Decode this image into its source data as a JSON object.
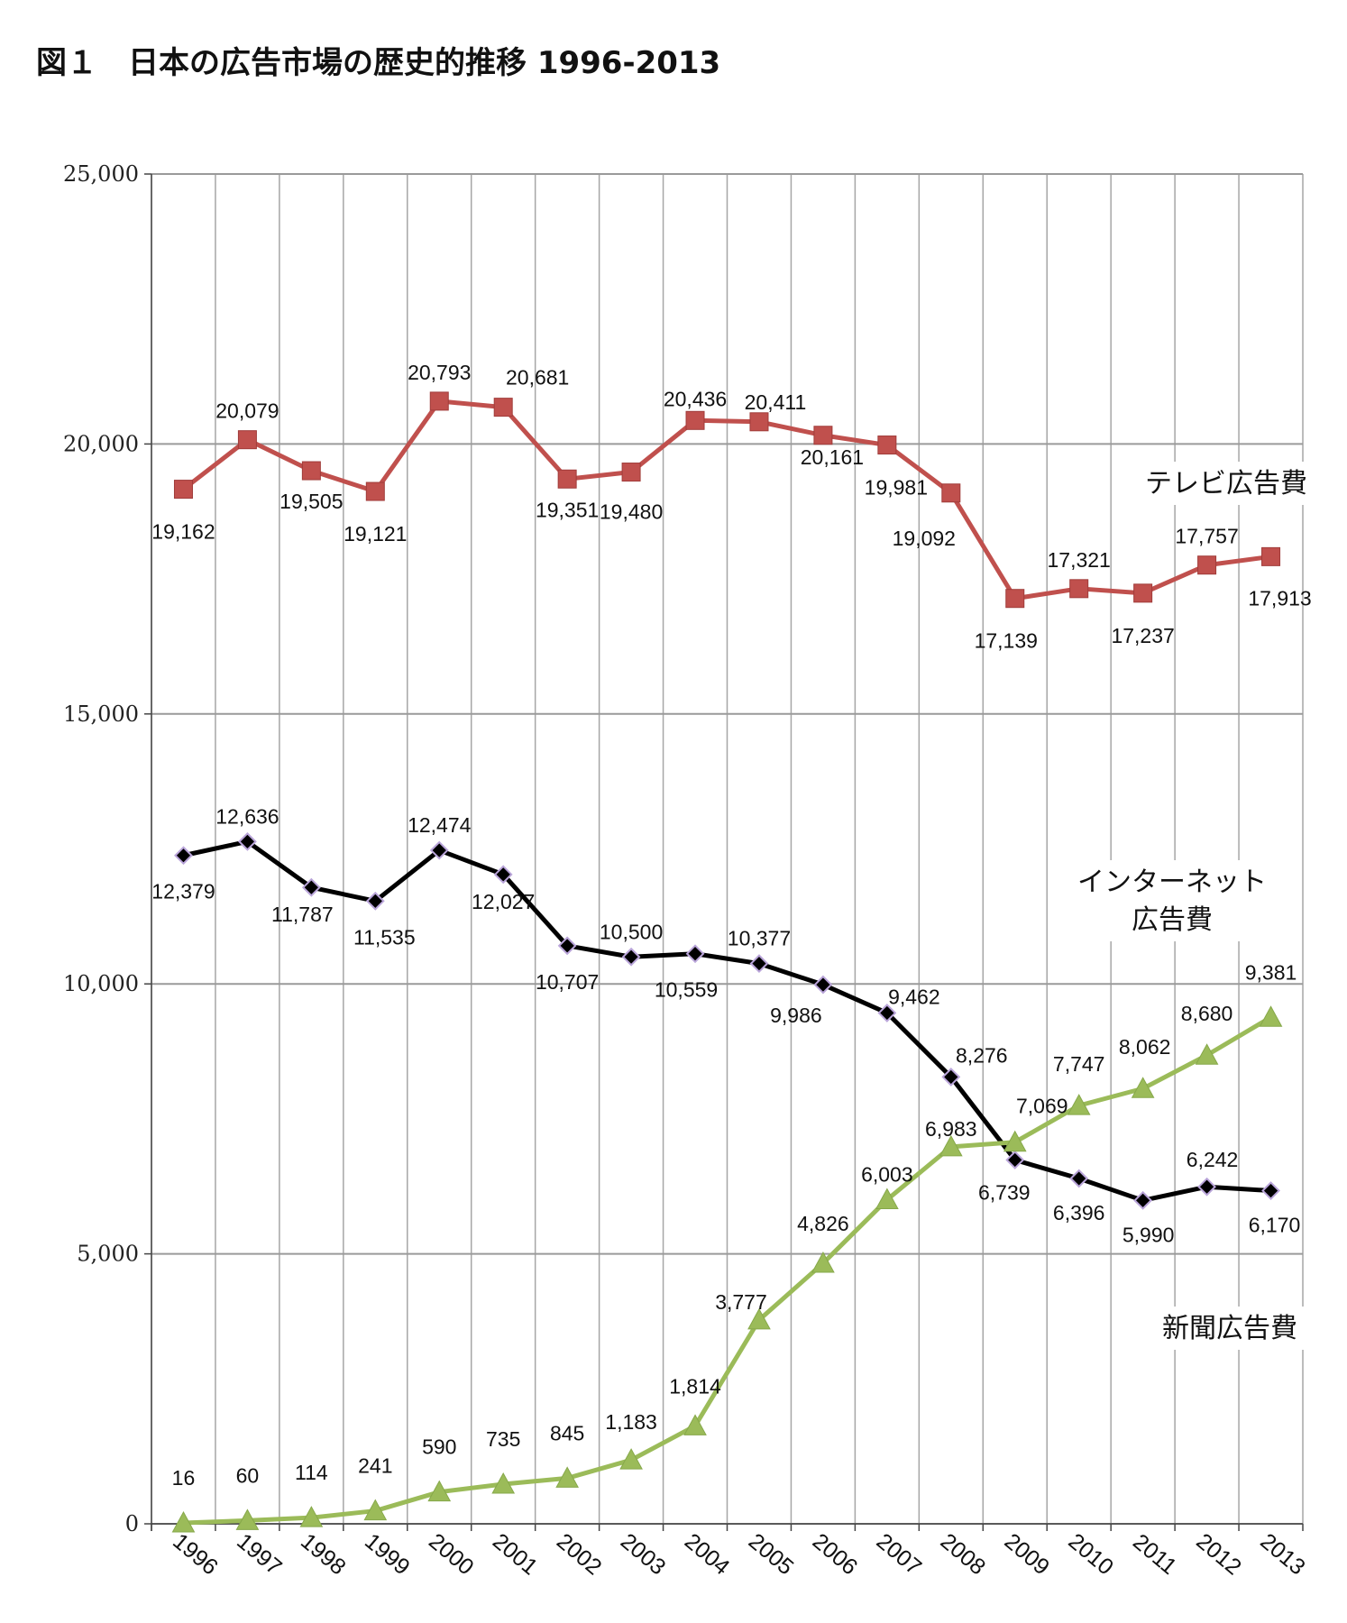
{
  "figure_title": "図１　日本の広告市場の歴史的推移 1996-2013",
  "chart_data": {
    "type": "line",
    "title": "図１　日本の広告市場の歴史的推移 1996-2013",
    "xlabel": "",
    "ylabel": "",
    "categories": [
      "1996",
      "1997",
      "1998",
      "1999",
      "2000",
      "2001",
      "2002",
      "2003",
      "2004",
      "2005",
      "2006",
      "2007",
      "2008",
      "2009",
      "2010",
      "2011",
      "2012",
      "2013"
    ],
    "ylim": [
      0,
      25000
    ],
    "yticks": [
      "0",
      "5,000",
      "10,000",
      "15,000",
      "20,000",
      "25,000"
    ],
    "grid": true,
    "legend": "none",
    "series": [
      {
        "name": "テレビ広告費",
        "color": "#c0504d",
        "marker": "square",
        "values": [
          19162,
          20079,
          19505,
          19121,
          20793,
          20681,
          19351,
          19480,
          20436,
          20411,
          20161,
          19981,
          19092,
          17139,
          17321,
          17237,
          17757,
          17913
        ],
        "labels": [
          "19,162",
          "20,079",
          "19,505",
          "19,121",
          "20,793",
          "20,681",
          "19,351",
          "19,480",
          "20,436",
          "20,411",
          "20,161",
          "19,981",
          "19,092",
          "17,139",
          "17,321",
          "17,237",
          "17,757",
          "17,913"
        ]
      },
      {
        "name": "新聞広告費",
        "color": "#000000",
        "marker": "diamond",
        "values": [
          12379,
          12636,
          11787,
          11535,
          12474,
          12027,
          10707,
          10500,
          10559,
          10377,
          9986,
          9462,
          8276,
          6739,
          6396,
          5990,
          6242,
          6170
        ],
        "labels": [
          "12,379",
          "12,636",
          "11,787",
          "11,535",
          "12,474",
          "12,027",
          "10,707",
          "10,500",
          "10,559",
          "10,377",
          "9,986",
          "9,462",
          "8,276",
          "6,739",
          "6,396",
          "5,990",
          "6,242",
          "6,170"
        ]
      },
      {
        "name": "インターネット広告費",
        "display_name_lines": [
          "インターネット",
          "広告費"
        ],
        "color": "#9bbb59",
        "marker": "triangle",
        "values": [
          16,
          60,
          114,
          241,
          590,
          735,
          845,
          1183,
          1814,
          3777,
          4826,
          6003,
          6983,
          7069,
          7747,
          8062,
          8680,
          9381
        ],
        "labels": [
          "16",
          "60",
          "114",
          "241",
          "590",
          "735",
          "845",
          "1,183",
          "1,814",
          "3,777",
          "4,826",
          "6,003",
          "6,983",
          "7,069",
          "7,747",
          "8,062",
          "8,680",
          "9,381"
        ]
      }
    ]
  }
}
